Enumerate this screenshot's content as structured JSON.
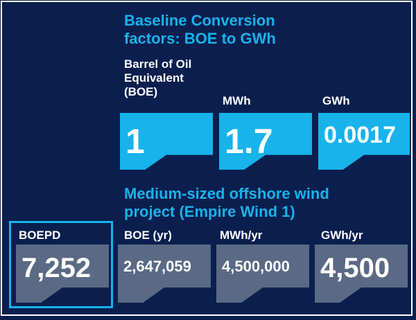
{
  "baseline": {
    "heading_line1": "Baseline Conversion",
    "heading_line2": "factors: BOE to GWh",
    "units": [
      {
        "label_lines": [
          "Barrel of Oil",
          "Equivalent",
          "(BOE)"
        ],
        "value": "1"
      },
      {
        "label_lines": [
          "MWh"
        ],
        "value": "1.7"
      },
      {
        "label_lines": [
          "GWh"
        ],
        "value": "0.0017"
      }
    ]
  },
  "project": {
    "heading_line1": "Medium-sized offshore wind",
    "heading_line2": "project (Empire Wind 1)",
    "metrics": [
      {
        "label": "BOEPD",
        "value": "7,252"
      },
      {
        "label": "BOE (yr)",
        "value": "2,647,059"
      },
      {
        "label": "MWh/yr",
        "value": "4,500,000"
      },
      {
        "label": "GWh/yr",
        "value": "4,500"
      }
    ]
  },
  "colors": {
    "background": "#0b1f4f",
    "accent_blue": "#17b3ea",
    "tile_gray": "#5a6a85",
    "text": "#ffffff"
  }
}
